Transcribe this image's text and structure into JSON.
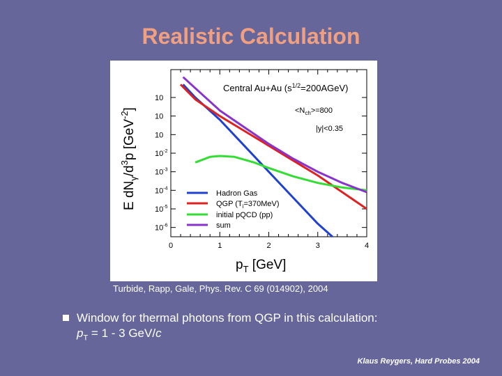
{
  "slide": {
    "title": "Realistic Calculation",
    "citation": "Turbide, Rapp, Gale, Phys. Rev. C 69 (014902), 2004",
    "bullet": {
      "text": "Window for thermal photons from QGP in this calculation:",
      "sub_p": "p",
      "sub_sub": "T",
      "sub_rest": " = 1 - 3 GeV/",
      "sub_c": "c"
    },
    "author": "Klaus Reygers, Hard Probes 2004",
    "colors": {
      "background": "#66669a",
      "title": "#f0a080"
    }
  },
  "chart_data": {
    "type": "line",
    "ylabel": "E dN",
    "ylabel_sub": "γ",
    "ylabel_rest": "/d",
    "ylabel_sup": "3",
    "ylabel_tail": "p  [GeV",
    "ylabel_exp": "-2",
    "ylabel_close": "]",
    "xlabel_main": "p",
    "xlabel_sub": "T",
    "xlabel_unit": " [GeV]",
    "y_log": true,
    "xlim": [
      0,
      4
    ],
    "ylim_exp": [
      -6.5,
      2.5
    ],
    "x_ticks": [
      "0",
      "1",
      "2",
      "3",
      "4"
    ],
    "y_ticks": [
      {
        "e": 1,
        "label": "10"
      },
      {
        "e": 0,
        "label": "10"
      },
      {
        "e": -1,
        "label": "10"
      },
      {
        "e": -2,
        "label": "10"
      },
      {
        "e": -3,
        "label": "10"
      },
      {
        "e": -4,
        "label": "10"
      },
      {
        "e": -5,
        "label": "10"
      },
      {
        "e": -6,
        "label": "10"
      }
    ],
    "y_tick_sups": [
      "",
      "",
      "",
      "-2",
      "-3",
      "-4",
      "-5",
      "-6"
    ],
    "annotations": [
      {
        "text": "Central Au+Au (s",
        "sup": "1/2",
        "tail": "=200AGeV)"
      },
      {
        "text": "<N",
        "sub": "ch",
        "tail": ">=800"
      },
      {
        "text": "|y|<0.35"
      }
    ],
    "series": [
      {
        "name": "Hadron Gas",
        "color": "#2040d0",
        "points": [
          [
            0.25,
            1.7
          ],
          [
            0.5,
            1.0
          ],
          [
            1.0,
            -0.2
          ],
          [
            1.5,
            -1.6
          ],
          [
            2.0,
            -3.0
          ],
          [
            2.5,
            -4.4
          ],
          [
            3.0,
            -5.8
          ],
          [
            3.3,
            -6.5
          ]
        ]
      },
      {
        "name": "QGP (T",
        "name_sub": "i",
        "name_tail": "=370MeV)",
        "color": "#dd2222",
        "points": [
          [
            0.2,
            1.7
          ],
          [
            0.5,
            0.9
          ],
          [
            1.0,
            -0.0
          ],
          [
            1.5,
            -0.8
          ],
          [
            2.0,
            -1.6
          ],
          [
            2.5,
            -2.4
          ],
          [
            3.0,
            -3.2
          ],
          [
            3.5,
            -4.1
          ],
          [
            4.0,
            -5.0
          ]
        ]
      },
      {
        "name": "initial pQCD (pp)",
        "color": "#33dd33",
        "points": [
          [
            0.5,
            -2.5
          ],
          [
            0.8,
            -2.2
          ],
          [
            1.0,
            -2.15
          ],
          [
            1.3,
            -2.2
          ],
          [
            1.7,
            -2.5
          ],
          [
            2.0,
            -2.8
          ],
          [
            2.5,
            -3.25
          ],
          [
            3.0,
            -3.6
          ],
          [
            3.5,
            -3.85
          ],
          [
            4.0,
            -4.0
          ]
        ]
      },
      {
        "name": "sum",
        "color": "#8833cc",
        "points": [
          [
            0.25,
            2.1
          ],
          [
            0.5,
            1.5
          ],
          [
            1.0,
            0.3
          ],
          [
            1.5,
            -0.6
          ],
          [
            2.0,
            -1.5
          ],
          [
            2.5,
            -2.3
          ],
          [
            3.0,
            -3.0
          ],
          [
            3.5,
            -3.6
          ],
          [
            4.0,
            -4.1
          ]
        ]
      }
    ]
  }
}
